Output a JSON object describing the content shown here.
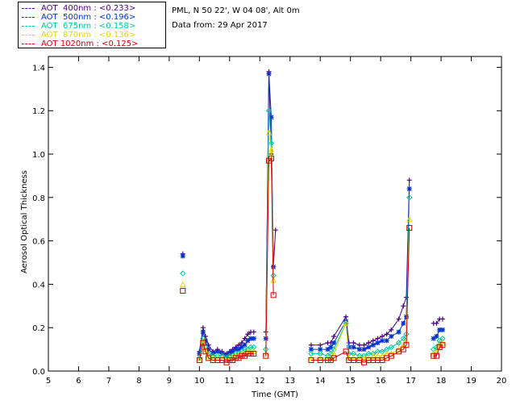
{
  "legend": [
    {
      "label": "AOT  400nm : <0.233>",
      "color": "#4b0082"
    },
    {
      "label": "AOT  500nm : <0.196>",
      "color": "#0033cc"
    },
    {
      "label": "AOT  675nm : <0.158>",
      "color": "#00c8a0"
    },
    {
      "label": "AOT  870nm : <0.136>",
      "color": "#e0d800"
    },
    {
      "label": "AOT 1020nm : <0.125>",
      "color": "#d00000"
    }
  ],
  "info": {
    "location": "PML, N 50 22', W 04 08', Alt 0m",
    "date": "Data from: 29 Apr 2017"
  },
  "chart_data": {
    "type": "line",
    "title": "",
    "xlabel": "Time (GMT)",
    "ylabel": "Aerosol Optical Thickness",
    "xlim": [
      5,
      20
    ],
    "ylim": [
      0,
      1.45
    ],
    "xticks": [
      5,
      6,
      7,
      8,
      9,
      10,
      11,
      12,
      13,
      14,
      15,
      16,
      17,
      18,
      19,
      20
    ],
    "yticks": [
      "0.0",
      "0.2",
      "0.4",
      "0.6",
      "0.8",
      "1.0",
      "1.2",
      "1.4"
    ],
    "series": [
      {
        "name": "AOT 400nm",
        "color": "#4b0082",
        "marker": "plus",
        "x": [
          9.45,
          10.0,
          10.12,
          10.2,
          10.3,
          10.45,
          10.6,
          10.75,
          10.9,
          11.0,
          11.1,
          11.2,
          11.3,
          11.4,
          11.5,
          11.6,
          11.7,
          11.8,
          11.9,
          12.2,
          12.3,
          12.38,
          12.45,
          12.52,
          13.7,
          14.0,
          14.25,
          14.35,
          14.45,
          14.85,
          14.95,
          15.1,
          15.3,
          15.45,
          15.6,
          15.75,
          15.9,
          16.05,
          16.2,
          16.35,
          16.6,
          16.75,
          16.85,
          16.95,
          17.75,
          17.85,
          17.95,
          18.05
        ],
        "y": [
          0.54,
          0.09,
          0.2,
          0.16,
          0.12,
          0.09,
          0.1,
          0.09,
          0.08,
          0.09,
          0.1,
          0.11,
          0.12,
          0.13,
          0.15,
          0.17,
          0.18,
          0.18,
          null,
          0.18,
          1.38,
          1.0,
          0.48,
          0.65,
          0.12,
          0.12,
          0.13,
          0.13,
          0.16,
          0.25,
          0.13,
          0.13,
          0.12,
          0.12,
          0.13,
          0.14,
          0.15,
          0.16,
          0.17,
          0.19,
          0.24,
          0.3,
          0.34,
          0.88,
          0.22,
          0.22,
          0.24,
          0.24
        ]
      },
      {
        "name": "AOT 500nm",
        "color": "#0033cc",
        "marker": "asterisk",
        "x": [
          9.45,
          10.0,
          10.12,
          10.2,
          10.3,
          10.45,
          10.6,
          10.75,
          10.9,
          11.0,
          11.1,
          11.2,
          11.3,
          11.4,
          11.5,
          11.6,
          11.7,
          11.8,
          11.9,
          12.2,
          12.3,
          12.38,
          12.45,
          12.52,
          13.7,
          14.0,
          14.25,
          14.35,
          14.45,
          14.85,
          14.95,
          15.1,
          15.3,
          15.45,
          15.6,
          15.75,
          15.9,
          16.05,
          16.2,
          16.35,
          16.6,
          16.75,
          16.85,
          16.95,
          17.75,
          17.85,
          17.95,
          18.05
        ],
        "y": [
          0.53,
          0.08,
          0.18,
          0.14,
          0.1,
          0.08,
          0.09,
          0.08,
          0.07,
          0.08,
          0.09,
          0.1,
          0.1,
          0.11,
          0.12,
          0.14,
          0.15,
          0.15,
          null,
          0.15,
          1.37,
          1.17,
          0.48,
          null,
          0.1,
          0.1,
          0.1,
          0.11,
          0.13,
          0.23,
          0.11,
          0.11,
          0.1,
          0.1,
          0.11,
          0.12,
          0.13,
          0.14,
          0.14,
          0.16,
          0.18,
          0.22,
          0.25,
          0.84,
          0.15,
          0.16,
          0.19,
          0.19
        ]
      },
      {
        "name": "AOT 675nm",
        "color": "#00c8a0",
        "marker": "diamond",
        "x": [
          9.45,
          10.0,
          10.12,
          10.2,
          10.3,
          10.45,
          10.6,
          10.75,
          10.9,
          11.0,
          11.1,
          11.2,
          11.3,
          11.4,
          11.5,
          11.6,
          11.7,
          11.8,
          11.9,
          12.2,
          12.3,
          12.38,
          12.45,
          12.52,
          13.7,
          14.0,
          14.25,
          14.35,
          14.45,
          14.85,
          14.95,
          15.1,
          15.3,
          15.45,
          15.6,
          15.75,
          15.9,
          16.05,
          16.2,
          16.35,
          16.6,
          16.75,
          16.85,
          16.95,
          17.75,
          17.85,
          17.95,
          18.05
        ],
        "y": [
          0.45,
          0.06,
          0.15,
          0.11,
          0.08,
          0.07,
          0.07,
          0.07,
          0.06,
          0.07,
          0.07,
          0.08,
          0.08,
          0.09,
          0.1,
          0.1,
          0.11,
          0.11,
          null,
          0.1,
          1.2,
          1.05,
          0.44,
          null,
          0.08,
          0.08,
          0.07,
          0.08,
          0.1,
          0.22,
          0.08,
          0.08,
          0.07,
          0.07,
          0.08,
          0.08,
          0.09,
          0.09,
          0.1,
          0.11,
          0.13,
          0.15,
          0.17,
          0.8,
          0.1,
          0.11,
          0.14,
          0.15
        ]
      },
      {
        "name": "AOT 870nm",
        "color": "#e0d800",
        "marker": "triangle",
        "x": [
          9.45,
          10.0,
          10.12,
          10.2,
          10.3,
          10.45,
          10.6,
          10.75,
          10.9,
          11.0,
          11.1,
          11.2,
          11.3,
          11.4,
          11.5,
          11.6,
          11.7,
          11.8,
          11.9,
          12.2,
          12.3,
          12.38,
          12.45,
          12.52,
          13.7,
          14.0,
          14.25,
          14.35,
          14.45,
          14.85,
          14.95,
          15.1,
          15.3,
          15.45,
          15.6,
          15.75,
          15.9,
          16.05,
          16.2,
          16.35,
          16.6,
          16.75,
          16.85,
          16.95,
          17.75,
          17.85,
          17.95,
          18.05
        ],
        "y": [
          0.4,
          0.05,
          0.14,
          0.1,
          0.07,
          0.06,
          0.06,
          0.06,
          0.05,
          0.06,
          0.06,
          0.07,
          0.07,
          0.08,
          0.08,
          0.09,
          0.09,
          0.09,
          null,
          0.08,
          1.1,
          1.02,
          0.42,
          null,
          0.06,
          0.06,
          0.06,
          0.06,
          0.08,
          0.22,
          0.06,
          0.06,
          0.06,
          0.06,
          0.06,
          0.07,
          0.07,
          0.07,
          0.08,
          0.08,
          0.1,
          0.12,
          0.14,
          0.7,
          0.08,
          0.09,
          0.12,
          0.13
        ]
      },
      {
        "name": "AOT 1020nm",
        "color": "#d00000",
        "marker": "square",
        "x": [
          9.45,
          10.0,
          10.12,
          10.2,
          10.3,
          10.45,
          10.6,
          10.75,
          10.9,
          11.0,
          11.1,
          11.2,
          11.3,
          11.4,
          11.5,
          11.6,
          11.7,
          11.8,
          11.9,
          12.2,
          12.3,
          12.38,
          12.45,
          12.52,
          13.7,
          14.0,
          14.25,
          14.35,
          14.45,
          14.85,
          14.95,
          15.1,
          15.3,
          15.45,
          15.6,
          15.75,
          15.9,
          16.05,
          16.2,
          16.35,
          16.6,
          16.75,
          16.85,
          16.95,
          17.75,
          17.85,
          17.95,
          18.05
        ],
        "y": [
          0.37,
          0.05,
          0.13,
          0.09,
          0.06,
          0.05,
          0.05,
          0.05,
          0.04,
          0.05,
          0.05,
          0.06,
          0.06,
          0.07,
          0.07,
          0.08,
          0.08,
          0.08,
          null,
          0.07,
          0.97,
          0.98,
          0.35,
          null,
          0.05,
          0.05,
          0.05,
          0.05,
          0.06,
          0.09,
          0.05,
          0.05,
          0.05,
          0.04,
          0.05,
          0.05,
          0.05,
          0.05,
          0.06,
          0.07,
          0.09,
          0.1,
          0.12,
          0.66,
          0.07,
          0.07,
          0.11,
          0.12
        ]
      }
    ]
  }
}
